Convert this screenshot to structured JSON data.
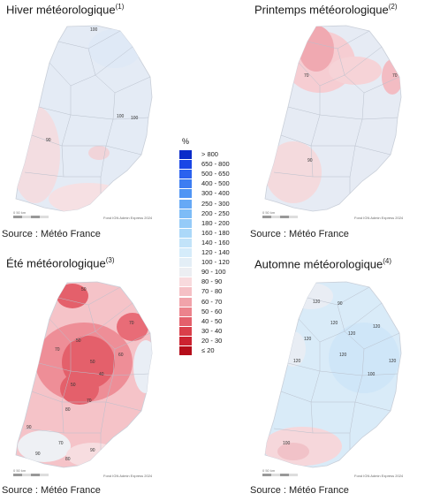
{
  "panels": [
    {
      "title": "Hiver météorologique",
      "note": "(1)",
      "source": "Source : Météo France",
      "credit": "Fond IGN Admin Express 2024",
      "scale": "0       50 km",
      "labels": [
        "100",
        "100",
        "100",
        "90"
      ]
    },
    {
      "title": "Printemps météorologique",
      "note": "(2)",
      "source": "Source : Météo France",
      "credit": "Fond IGN Admin Express 2024",
      "scale": "0       50 km",
      "labels": [
        "70",
        "70",
        "90"
      ]
    },
    {
      "title": "Été météorologique",
      "note": "(3)",
      "source": "Source : Météo France",
      "credit": "Fond IGN Admin Express 2024",
      "scale": "0       50 km",
      "labels": [
        "50",
        "70",
        "50",
        "60",
        "70",
        "50",
        "40",
        "50",
        "70",
        "80",
        "90",
        "70",
        "90",
        "80",
        "90"
      ]
    },
    {
      "title": "Automne météorologique",
      "note": "(4)",
      "source": "Source : Météo France",
      "credit": "Fond IGN Admin Express 2024",
      "scale": "0       50 km",
      "labels": [
        "120",
        "90",
        "120",
        "120",
        "120",
        "120",
        "120",
        "120",
        "100",
        "120",
        "100"
      ]
    }
  ],
  "legend": {
    "unit": "%",
    "items": [
      {
        "label": "> 800",
        "color": "#0a2bc9"
      },
      {
        "label": "650 - 800",
        "color": "#1946e6"
      },
      {
        "label": "500 - 650",
        "color": "#2b62ef"
      },
      {
        "label": "400 - 500",
        "color": "#3c7df2"
      },
      {
        "label": "300 - 400",
        "color": "#4f95f4"
      },
      {
        "label": "250 - 300",
        "color": "#66a9f6"
      },
      {
        "label": "200 - 250",
        "color": "#7dbcf7"
      },
      {
        "label": "180 - 200",
        "color": "#95cbf8"
      },
      {
        "label": "160 - 180",
        "color": "#abd8f9"
      },
      {
        "label": "140 - 160",
        "color": "#c2e3f9"
      },
      {
        "label": "120 - 140",
        "color": "#d5ecfa"
      },
      {
        "label": "100 - 120",
        "color": "#e3eef6"
      },
      {
        "label": "90 - 100",
        "color": "#eceef2"
      },
      {
        "label": "80 - 90",
        "color": "#f8dadd"
      },
      {
        "label": "70 - 80",
        "color": "#f5c0c5"
      },
      {
        "label": "60 - 70",
        "color": "#f1a3aa"
      },
      {
        "label": "50 - 60",
        "color": "#ec838c"
      },
      {
        "label": "40 - 50",
        "color": "#e4606b"
      },
      {
        "label": "30 - 40",
        "color": "#da3f4a"
      },
      {
        "label": "20 - 30",
        "color": "#cc2230"
      },
      {
        "label": "≤ 20",
        "color": "#b50d1a"
      }
    ]
  }
}
